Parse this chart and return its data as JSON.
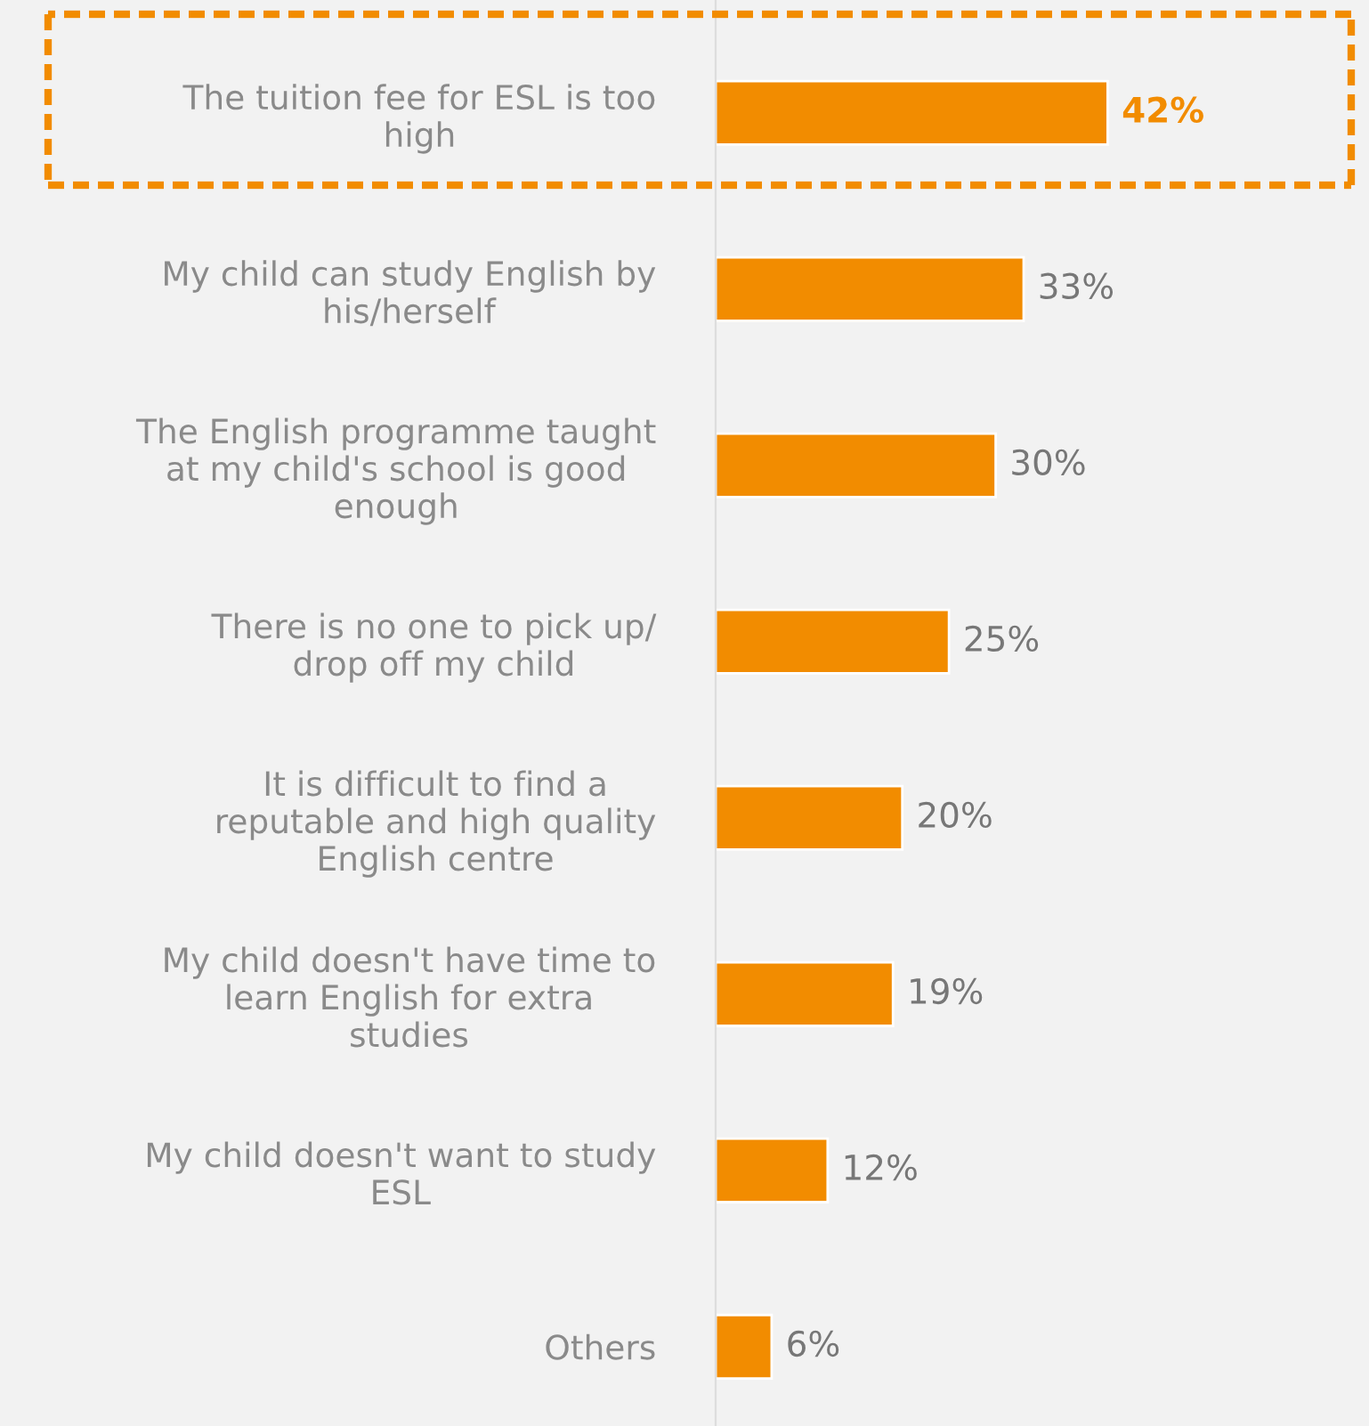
{
  "chart_data": {
    "type": "bar",
    "orientation": "horizontal",
    "categories": [
      "The tuition fee for ESL is too high",
      "My child can study English by his/herself",
      "The English programme taught at my child's school is good enough",
      "There is no one to pick up/ drop off my child",
      "It is difficult to find a reputable and high quality English centre",
      "My child doesn't have time to learn English for extra studies",
      "My child doesn't want to study ESL",
      "Others"
    ],
    "values": [
      42,
      33,
      30,
      25,
      20,
      19,
      12,
      6
    ],
    "value_labels": [
      "42%",
      "33%",
      "30%",
      "25%",
      "20%",
      "19%",
      "12%",
      "6%"
    ],
    "color": "#f28c00",
    "xlim": [
      0,
      70
    ],
    "tick_labels": "y",
    "grid": false,
    "legend": false
  }
}
